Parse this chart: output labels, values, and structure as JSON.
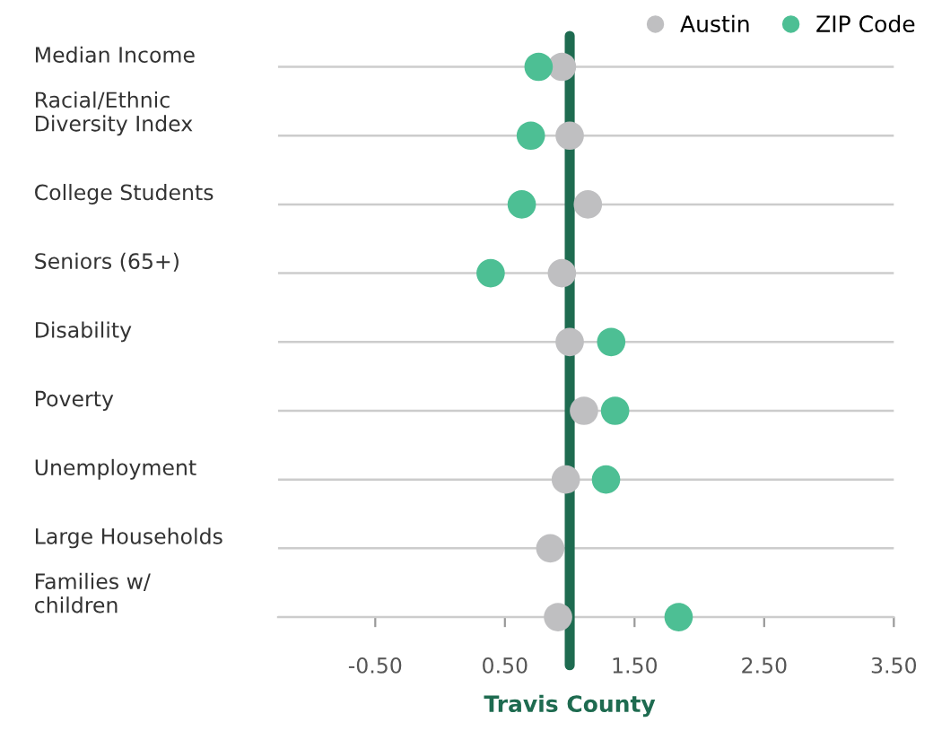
{
  "chart_data": {
    "type": "scatter",
    "orientation": "horizontal",
    "categories": [
      "Median Income",
      "Racial/Ethnic\nDiversity Index",
      "College Students",
      "Seniors (65+)",
      "Disability",
      "Poverty",
      "Unemployment",
      "Large Households",
      "Families w/\nchildren"
    ],
    "series": [
      {
        "name": "Austin",
        "color": "#bfbfc1",
        "values": [
          0.94,
          1.0,
          1.14,
          0.94,
          1.0,
          1.11,
          0.97,
          0.85,
          0.91
        ]
      },
      {
        "name": "ZIP Code",
        "color": "#4dbf94",
        "values": [
          0.76,
          0.7,
          0.63,
          0.39,
          1.32,
          1.35,
          1.28,
          null,
          1.84
        ]
      }
    ],
    "xlim": [
      -1.25,
      3.5
    ],
    "xticks": [
      {
        "value": -0.5,
        "label": "-0.50"
      },
      {
        "value": 0.5,
        "label": "0.50"
      },
      {
        "value": 1.5,
        "label": "1.50"
      },
      {
        "value": 2.5,
        "label": "2.50"
      },
      {
        "value": 3.5,
        "label": "3.50"
      }
    ],
    "ref_lines": [
      {
        "axis": "x",
        "value": 1,
        "label": "Travis County",
        "color": "#1e6b50"
      }
    ],
    "grid": "y",
    "legend": "top right",
    "marker": "circle"
  }
}
